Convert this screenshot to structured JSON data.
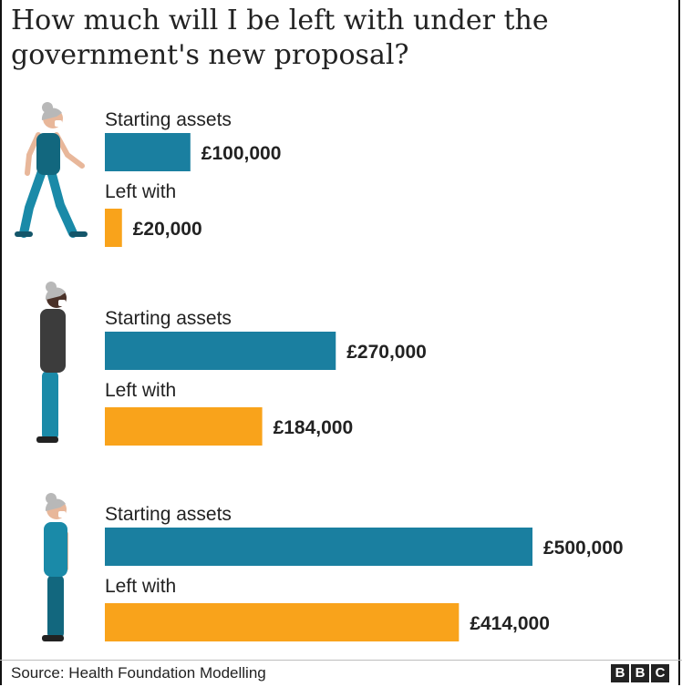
{
  "title": "How much will I be left with under the government's new proposal?",
  "source": "Source: Health Foundation Modelling",
  "logo": [
    "B",
    "B",
    "C"
  ],
  "colors": {
    "starting": "#1a7fa0",
    "left": "#f9a31b",
    "skin_light": "#e8b79a",
    "skin_dark": "#4a3128",
    "hair": "#b8b8b8",
    "teal": "#1a8aa8",
    "dark_teal": "#12677e",
    "grey_top": "#3c3c3c"
  },
  "chart_data": {
    "type": "bar",
    "orientation": "horizontal",
    "groups": [
      {
        "series": [
          {
            "name": "Starting assets",
            "value": 100000,
            "label": "£100,000"
          },
          {
            "name": "Left with",
            "value": 20000,
            "label": "£20,000"
          }
        ]
      },
      {
        "series": [
          {
            "name": "Starting assets",
            "value": 270000,
            "label": "£270,000"
          },
          {
            "name": "Left with",
            "value": 184000,
            "label": "£184,000"
          }
        ]
      },
      {
        "series": [
          {
            "name": "Starting assets",
            "value": 500000,
            "label": "£500,000"
          },
          {
            "name": "Left with",
            "value": 414000,
            "label": "£414,000"
          }
        ]
      }
    ],
    "xlim": [
      0,
      500000
    ],
    "grid": false
  }
}
